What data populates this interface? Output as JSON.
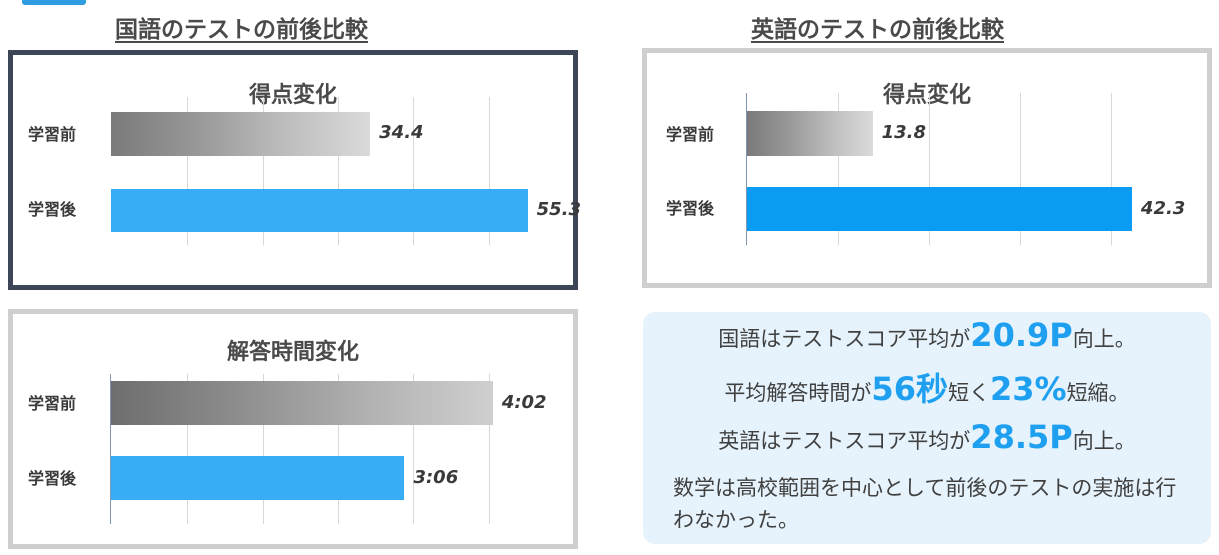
{
  "sections": {
    "japanese_title": "国語のテストの前後比較",
    "english_title": "英語のテストの前後比較"
  },
  "chart_data": [
    {
      "type": "bar",
      "orientation": "horizontal",
      "title": "得点変化",
      "categories": [
        "学習前",
        "学習後"
      ],
      "values": [
        34.4,
        55.3
      ],
      "value_labels": [
        "34.4",
        "55.3"
      ],
      "xlim": [
        0,
        60
      ],
      "grid": true
    },
    {
      "type": "bar",
      "orientation": "horizontal",
      "title": "解答時間変化",
      "categories": [
        "学習前",
        "学習後"
      ],
      "values": [
        242,
        186
      ],
      "value_labels": [
        "4:02",
        "3:06"
      ],
      "xlim": [
        0,
        270
      ],
      "grid": true
    },
    {
      "type": "bar",
      "orientation": "horizontal",
      "title": "得点変化",
      "categories": [
        "学習前",
        "学習後"
      ],
      "values": [
        13.8,
        42.3
      ],
      "value_labels": [
        "13.8",
        "42.3"
      ],
      "xlim": [
        0,
        50
      ],
      "grid": true
    }
  ],
  "summary": {
    "line1_pre": "国語はテストスコア平均が",
    "line1_hl": "20.9P",
    "line1_post": "向上。",
    "line2_pre": "平均解答時間が",
    "line2_hl1": "56秒",
    "line2_mid": "短く",
    "line2_hl2": "23%",
    "line2_post": "短縮。",
    "line3_pre": "英語はテストスコア平均が",
    "line3_hl": "28.5P",
    "line3_post": "向上。",
    "paragraph": "数学は高校範囲を中心として前後のテストの実施は行わなかった。"
  },
  "colors": {
    "accent": "#2f9ce0",
    "highlight": "#1e9ff0",
    "bar_after": "#38adf5",
    "bar_after_alt": "#0a9cf2",
    "panel_dark_border": "#3c4656",
    "panel_light_border": "#cfcfcf",
    "info_bg": "#e6f3fc"
  }
}
